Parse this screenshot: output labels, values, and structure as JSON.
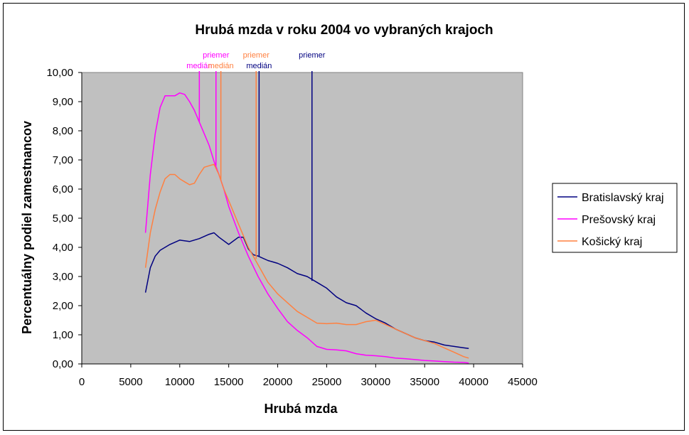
{
  "chart_data": {
    "type": "line",
    "title": "Hrubá mzda v roku 2004 vo vybraných krajoch",
    "xlabel": "Hrubá mzda",
    "ylabel": "Percentuálny podiel zamestnancov",
    "xlim": [
      0,
      45000
    ],
    "ylim": [
      0,
      10
    ],
    "x_ticks": [
      "0",
      "5000",
      "10000",
      "15000",
      "20000",
      "25000",
      "30000",
      "35000",
      "40000",
      "45000"
    ],
    "y_ticks": [
      "0,00",
      "1,00",
      "2,00",
      "3,00",
      "4,00",
      "5,00",
      "6,00",
      "7,00",
      "8,00",
      "9,00",
      "10,00"
    ],
    "plot_background": "#c0c0c0",
    "grid": false,
    "legend_position": "right",
    "series": [
      {
        "name": "Bratislavský kraj",
        "color": "#000080",
        "points": [
          [
            6500,
            2.45
          ],
          [
            7000,
            3.3
          ],
          [
            7500,
            3.7
          ],
          [
            8000,
            3.9
          ],
          [
            9000,
            4.1
          ],
          [
            10000,
            4.25
          ],
          [
            11000,
            4.2
          ],
          [
            12000,
            4.3
          ],
          [
            13000,
            4.45
          ],
          [
            13500,
            4.5
          ],
          [
            14000,
            4.35
          ],
          [
            15000,
            4.1
          ],
          [
            16000,
            4.35
          ],
          [
            16500,
            4.35
          ],
          [
            17000,
            3.95
          ],
          [
            17500,
            3.75
          ],
          [
            18000,
            3.7
          ],
          [
            19000,
            3.55
          ],
          [
            20000,
            3.45
          ],
          [
            21000,
            3.3
          ],
          [
            22000,
            3.1
          ],
          [
            23000,
            3.0
          ],
          [
            24000,
            2.8
          ],
          [
            25000,
            2.6
          ],
          [
            26000,
            2.3
          ],
          [
            27000,
            2.1
          ],
          [
            28000,
            2.0
          ],
          [
            29000,
            1.75
          ],
          [
            30000,
            1.55
          ],
          [
            31000,
            1.4
          ],
          [
            32000,
            1.2
          ],
          [
            33000,
            1.05
          ],
          [
            34000,
            0.9
          ],
          [
            35000,
            0.8
          ],
          [
            36000,
            0.75
          ],
          [
            37000,
            0.65
          ],
          [
            38000,
            0.6
          ],
          [
            39000,
            0.55
          ],
          [
            39500,
            0.53
          ]
        ]
      },
      {
        "name": "Prešovský kraj",
        "color": "#ff00ff",
        "points": [
          [
            6500,
            4.5
          ],
          [
            7000,
            6.5
          ],
          [
            7500,
            7.9
          ],
          [
            8000,
            8.8
          ],
          [
            8500,
            9.2
          ],
          [
            9000,
            9.2
          ],
          [
            9500,
            9.2
          ],
          [
            10000,
            9.3
          ],
          [
            10500,
            9.25
          ],
          [
            11000,
            9.0
          ],
          [
            11500,
            8.7
          ],
          [
            12000,
            8.3
          ],
          [
            12500,
            7.9
          ],
          [
            13000,
            7.5
          ],
          [
            13500,
            6.95
          ],
          [
            14000,
            6.5
          ],
          [
            14500,
            6.0
          ],
          [
            15000,
            5.4
          ],
          [
            16000,
            4.5
          ],
          [
            17000,
            3.7
          ],
          [
            18000,
            3.0
          ],
          [
            19000,
            2.4
          ],
          [
            20000,
            1.9
          ],
          [
            21000,
            1.45
          ],
          [
            22000,
            1.15
          ],
          [
            23000,
            0.9
          ],
          [
            24000,
            0.6
          ],
          [
            25000,
            0.5
          ],
          [
            26000,
            0.48
          ],
          [
            27000,
            0.45
          ],
          [
            28000,
            0.35
          ],
          [
            29000,
            0.3
          ],
          [
            30000,
            0.28
          ],
          [
            31000,
            0.25
          ],
          [
            32000,
            0.2
          ],
          [
            33000,
            0.18
          ],
          [
            34000,
            0.15
          ],
          [
            35000,
            0.12
          ],
          [
            36000,
            0.1
          ],
          [
            37000,
            0.08
          ],
          [
            38000,
            0.06
          ],
          [
            39000,
            0.05
          ],
          [
            39500,
            0.03
          ]
        ]
      },
      {
        "name": "Košický kraj",
        "color": "#ff8040",
        "points": [
          [
            6500,
            3.3
          ],
          [
            7000,
            4.5
          ],
          [
            7500,
            5.3
          ],
          [
            8000,
            5.9
          ],
          [
            8500,
            6.35
          ],
          [
            9000,
            6.5
          ],
          [
            9500,
            6.5
          ],
          [
            10000,
            6.35
          ],
          [
            10500,
            6.25
          ],
          [
            11000,
            6.15
          ],
          [
            11500,
            6.2
          ],
          [
            12000,
            6.5
          ],
          [
            12500,
            6.75
          ],
          [
            13000,
            6.8
          ],
          [
            13500,
            6.85
          ],
          [
            14000,
            6.5
          ],
          [
            14500,
            6.0
          ],
          [
            15000,
            5.6
          ],
          [
            16000,
            4.8
          ],
          [
            17000,
            4.0
          ],
          [
            18000,
            3.4
          ],
          [
            19000,
            2.8
          ],
          [
            20000,
            2.4
          ],
          [
            21000,
            2.1
          ],
          [
            22000,
            1.8
          ],
          [
            23000,
            1.6
          ],
          [
            24000,
            1.4
          ],
          [
            25000,
            1.38
          ],
          [
            26000,
            1.4
          ],
          [
            27000,
            1.35
          ],
          [
            28000,
            1.35
          ],
          [
            29000,
            1.45
          ],
          [
            30000,
            1.5
          ],
          [
            31000,
            1.35
          ],
          [
            32000,
            1.2
          ],
          [
            33000,
            1.05
          ],
          [
            34000,
            0.9
          ],
          [
            35000,
            0.8
          ],
          [
            36000,
            0.7
          ],
          [
            37000,
            0.55
          ],
          [
            38000,
            0.4
          ],
          [
            39000,
            0.25
          ],
          [
            39500,
            0.2
          ]
        ]
      }
    ],
    "markers": [
      {
        "label": "medián",
        "series": "Prešovský kraj",
        "x": 12000,
        "y_bottom": 8.3,
        "color": "#ff00ff",
        "label_row": 2
      },
      {
        "label": "priemer",
        "series": "Prešovský kraj",
        "x": 13700,
        "y_bottom": 6.8,
        "color": "#ff00ff",
        "label_row": 1
      },
      {
        "label": "medián",
        "series": "Košický kraj",
        "x": 14200,
        "y_bottom": 6.3,
        "color": "#ff8040",
        "label_row": 2
      },
      {
        "label": "priemer",
        "series": "Košický kraj",
        "x": 17800,
        "y_bottom": 3.6,
        "color": "#ff8040",
        "label_row": 1
      },
      {
        "label": "medián",
        "series": "Bratislavský kraj",
        "x": 18100,
        "y_bottom": 3.7,
        "color": "#000080",
        "label_row": 2
      },
      {
        "label": "priemer",
        "series": "Bratislavský kraj",
        "x": 23500,
        "y_bottom": 2.85,
        "color": "#000080",
        "label_row": 1
      }
    ]
  }
}
